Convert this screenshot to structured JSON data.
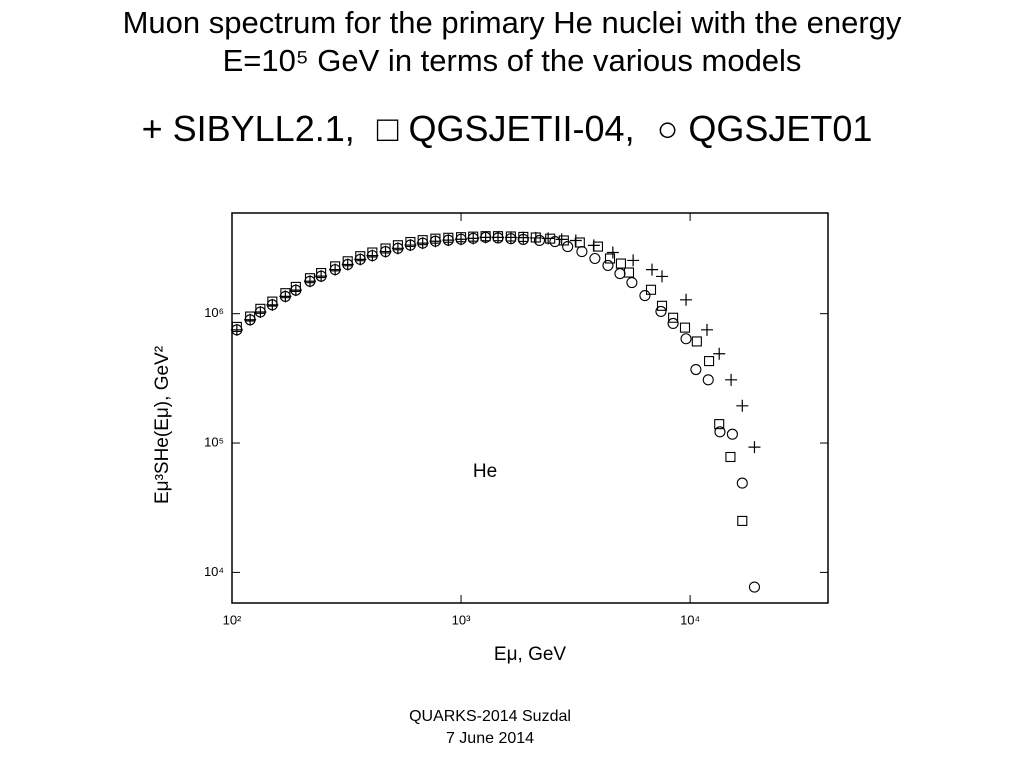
{
  "chart_data": {
    "type": "scatter",
    "title": [
      "Muon spectrum for the primary He nuclei with the energy",
      "E=10⁵ GeV in terms of the various models"
    ],
    "x_label": "Eμ, GeV",
    "y_label": "Eμ³SHe(Eμ), GeV²",
    "annotation": "He",
    "footer": [
      "QUARKS-2014  Suzdal",
      "7 June 2014"
    ],
    "xscale": "log",
    "yscale": "log",
    "xlim": [
      100,
      40000
    ],
    "ylim": [
      5800,
      6000000
    ],
    "xticks": [
      {
        "value": 100,
        "label": "10²"
      },
      {
        "value": 1000,
        "label": "10³"
      },
      {
        "value": 10000,
        "label": "10⁴"
      }
    ],
    "yticks": [
      {
        "value": 10000,
        "label": "10⁴"
      },
      {
        "value": 100000,
        "label": "10⁵"
      },
      {
        "value": 1000000,
        "label": "10⁶"
      }
    ],
    "series": [
      {
        "name": "SIBYLL2.1,",
        "symbol": "+",
        "color": "#000000",
        "x": [
          105,
          120,
          133,
          150,
          171,
          190,
          219,
          245,
          282,
          320,
          363,
          410,
          468,
          530,
          601,
          680,
          773,
          880,
          1000,
          1130,
          1280,
          1450,
          1650,
          1870,
          2120,
          2400,
          2750,
          3170,
          3800,
          4600,
          5640,
          6820,
          7540,
          9600,
          11850,
          13400,
          15100,
          16900,
          19100
        ],
        "values": [
          750000,
          897000,
          1030000,
          1170000,
          1360000,
          1520000,
          1780000,
          1950000,
          2190000,
          2400000,
          2630000,
          2810000,
          3020000,
          3200000,
          3390000,
          3510000,
          3630000,
          3700000,
          3760000,
          3820000,
          3890000,
          3890000,
          3890000,
          3870000,
          3850000,
          3820000,
          3750000,
          3680000,
          3370000,
          2970000,
          2580000,
          2190000,
          1940000,
          1280000,
          750000,
          490000,
          308000,
          194000,
          93000
        ]
      },
      {
        "name": "QGSJETII-04,",
        "symbol": "□",
        "color": "#000000",
        "x": [
          105,
          120,
          133,
          150,
          171,
          190,
          219,
          245,
          282,
          320,
          363,
          410,
          468,
          530,
          601,
          680,
          773,
          880,
          1000,
          1130,
          1280,
          1450,
          1650,
          1870,
          2120,
          2450,
          2810,
          3300,
          3960,
          4470,
          4990,
          5410,
          6750,
          7540,
          8430,
          9500,
          10700,
          12100,
          13400,
          15000,
          16900
        ],
        "values": [
          790000,
          950000,
          1090000,
          1240000,
          1440000,
          1610000,
          1880000,
          2060000,
          2320000,
          2540000,
          2780000,
          2970000,
          3190000,
          3380000,
          3580000,
          3700000,
          3800000,
          3860000,
          3900000,
          3940000,
          3970000,
          3970000,
          3950000,
          3920000,
          3880000,
          3800000,
          3680000,
          3550000,
          3300000,
          2670000,
          2440000,
          2080000,
          1530000,
          1150000,
          930000,
          780000,
          610000,
          430000,
          140000,
          78000,
          25000
        ]
      },
      {
        "name": "QGSJET01",
        "symbol": "○",
        "color": "#000000",
        "x": [
          105,
          120,
          133,
          150,
          171,
          190,
          219,
          245,
          282,
          320,
          363,
          410,
          468,
          530,
          601,
          680,
          773,
          880,
          1000,
          1130,
          1280,
          1450,
          1650,
          1870,
          2200,
          2570,
          2920,
          3370,
          3840,
          4380,
          4940,
          5570,
          6350,
          7460,
          8430,
          9600,
          10600,
          12000,
          13500,
          15300,
          16900,
          19100
        ],
        "values": [
          750000,
          897000,
          1030000,
          1170000,
          1360000,
          1520000,
          1780000,
          1950000,
          2190000,
          2400000,
          2630000,
          2810000,
          3020000,
          3200000,
          3390000,
          3510000,
          3630000,
          3700000,
          3760000,
          3820000,
          3890000,
          3850000,
          3800000,
          3750000,
          3680000,
          3610000,
          3300000,
          3020000,
          2670000,
          2360000,
          2040000,
          1740000,
          1380000,
          1040000,
          840000,
          640000,
          370000,
          308000,
          122000,
          117000,
          49000,
          7700
        ]
      }
    ]
  }
}
